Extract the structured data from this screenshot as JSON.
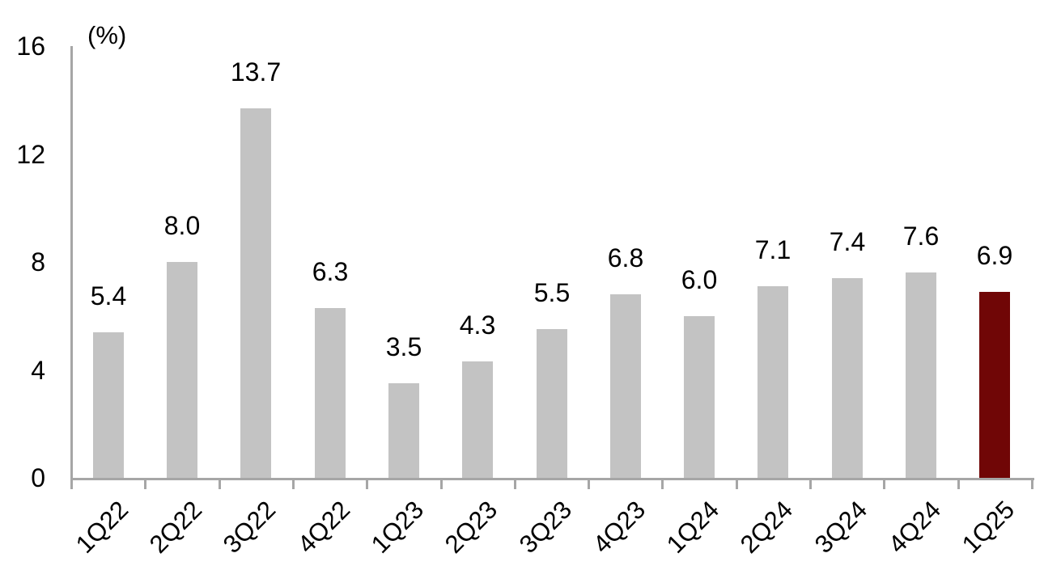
{
  "chart_data": {
    "type": "bar",
    "title": "",
    "unit_label": "(%)",
    "xlabel": "",
    "ylabel": "",
    "categories": [
      "1Q22",
      "2Q22",
      "3Q22",
      "4Q22",
      "1Q23",
      "2Q23",
      "3Q23",
      "4Q23",
      "1Q24",
      "2Q24",
      "3Q24",
      "4Q24",
      "1Q25"
    ],
    "values": [
      5.4,
      8.0,
      13.7,
      6.3,
      3.5,
      4.3,
      5.5,
      6.8,
      6.0,
      7.1,
      7.4,
      7.6,
      6.9
    ],
    "value_labels": [
      "5.4",
      "8.0",
      "13.7",
      "6.3",
      "3.5",
      "4.3",
      "5.5",
      "6.8",
      "6.0",
      "7.1",
      "7.4",
      "7.6",
      "6.9"
    ],
    "ylim": [
      0,
      16
    ],
    "yticks": [
      0,
      4,
      8,
      12,
      16
    ],
    "grid": false,
    "legend_position": "none",
    "bar_color": "#c3c3c3",
    "highlight_color": "#700606",
    "highlight_index": 12,
    "axis_color": "#a6a6a6",
    "text_color": "#000000"
  }
}
